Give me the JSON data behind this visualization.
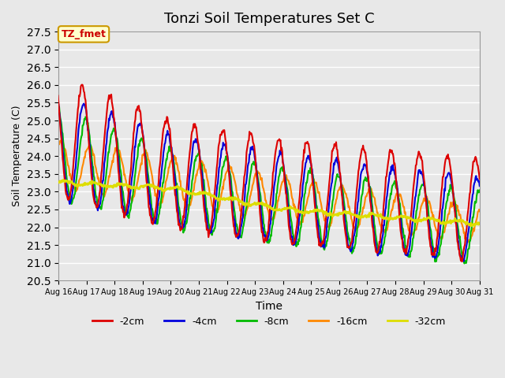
{
  "title": "Tonzi Soil Temperatures Set C",
  "xlabel": "Time",
  "ylabel": "Soil Temperature (C)",
  "ylim": [
    20.5,
    27.5
  ],
  "background_color": "#e8e8e8",
  "plot_bg_color": "#e8e8e8",
  "annotation_text": "TZ_fmet",
  "annotation_bg": "#ffffcc",
  "annotation_border": "#cc9900",
  "annotation_text_color": "#cc0000",
  "series": {
    "-2cm": {
      "color": "#dd0000",
      "lw": 1.5
    },
    "-4cm": {
      "color": "#0000dd",
      "lw": 1.5
    },
    "-8cm": {
      "color": "#00bb00",
      "lw": 1.5
    },
    "-16cm": {
      "color": "#ff8800",
      "lw": 1.5
    },
    "-32cm": {
      "color": "#dddd00",
      "lw": 2.0
    }
  },
  "x_tick_labels": [
    "Aug 16",
    "Aug 17",
    "Aug 18",
    "Aug 19",
    "Aug 20",
    "Aug 21",
    "Aug 22",
    "Aug 23",
    "Aug 24",
    "Aug 25",
    "Aug 26",
    "Aug 27",
    "Aug 28",
    "Aug 29",
    "Aug 30",
    "Aug 31"
  ],
  "grid_color": "#ffffff",
  "n_days": 21,
  "start_day": 16
}
